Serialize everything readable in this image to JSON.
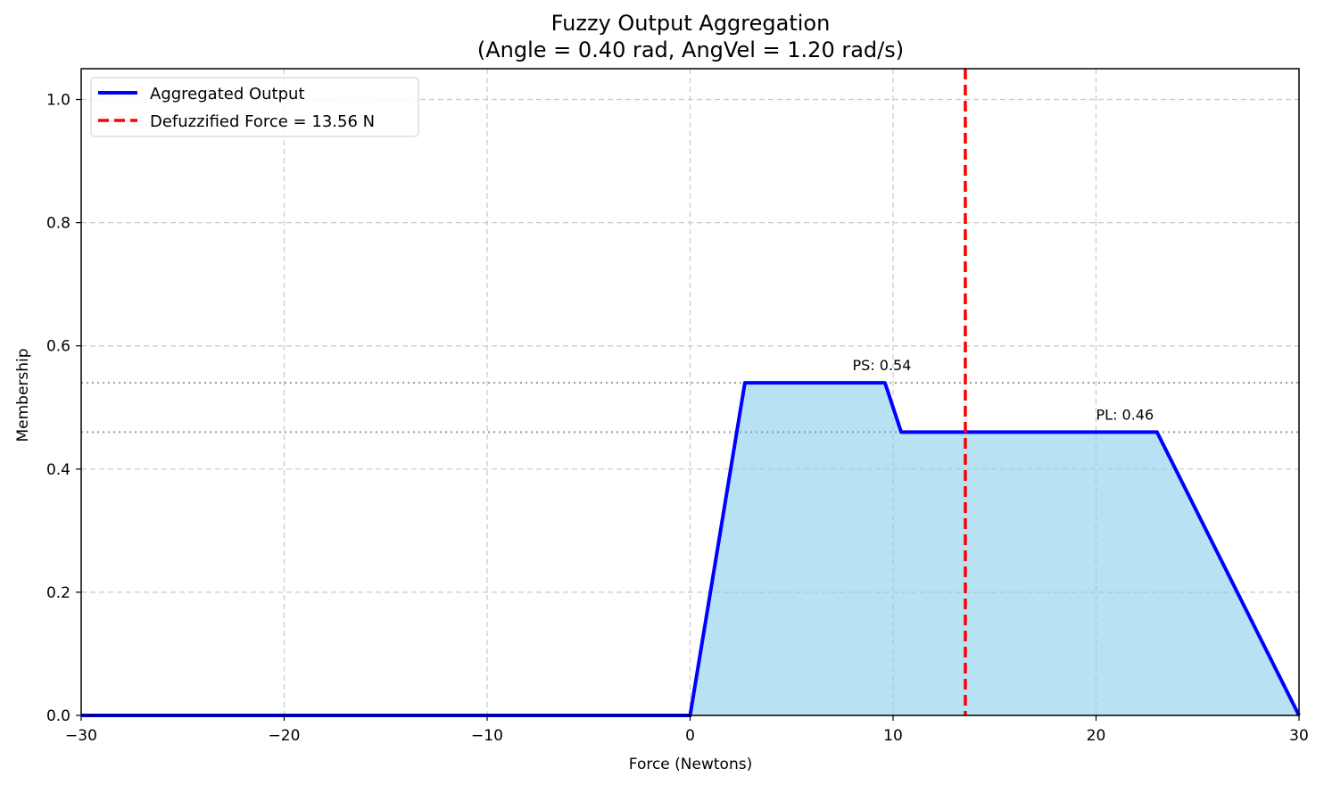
{
  "chart_data": {
    "type": "area",
    "title": "Fuzzy Output Aggregation",
    "subtitle": "(Angle = 0.40 rad, AngVel = 1.20 rad/s)",
    "xlabel": "Force (Newtons)",
    "ylabel": "Membership",
    "xlim": [
      -30,
      30
    ],
    "ylim": [
      0,
      1.05
    ],
    "xticks": [
      -30,
      -20,
      -10,
      0,
      10,
      20,
      30
    ],
    "xtick_labels": [
      "−30",
      "−20",
      "−10",
      "0",
      "10",
      "20",
      "30"
    ],
    "yticks": [
      0,
      0.2,
      0.4,
      0.6,
      0.8,
      1.0
    ],
    "ytick_labels": [
      "0.0",
      "0.2",
      "0.4",
      "0.6",
      "0.8",
      "1.0"
    ],
    "grid": true,
    "legend_position": "top-left",
    "series": [
      {
        "name": "Aggregated Output",
        "color": "#0000ff",
        "fill_color": "#87ceeb",
        "x": [
          -30,
          0,
          2.7,
          9.6,
          10.4,
          23,
          30
        ],
        "y": [
          0,
          0,
          0.54,
          0.54,
          0.46,
          0.46,
          0
        ]
      }
    ],
    "defuzzified": {
      "name": "Defuzzified Force = 13.56 N",
      "value": 13.56,
      "color": "#ff0000"
    },
    "levels": [
      {
        "label": "PS: 0.54",
        "value": 0.54,
        "label_x": 8
      },
      {
        "label": "PL: 0.46",
        "value": 0.46,
        "label_x": 20
      }
    ]
  }
}
